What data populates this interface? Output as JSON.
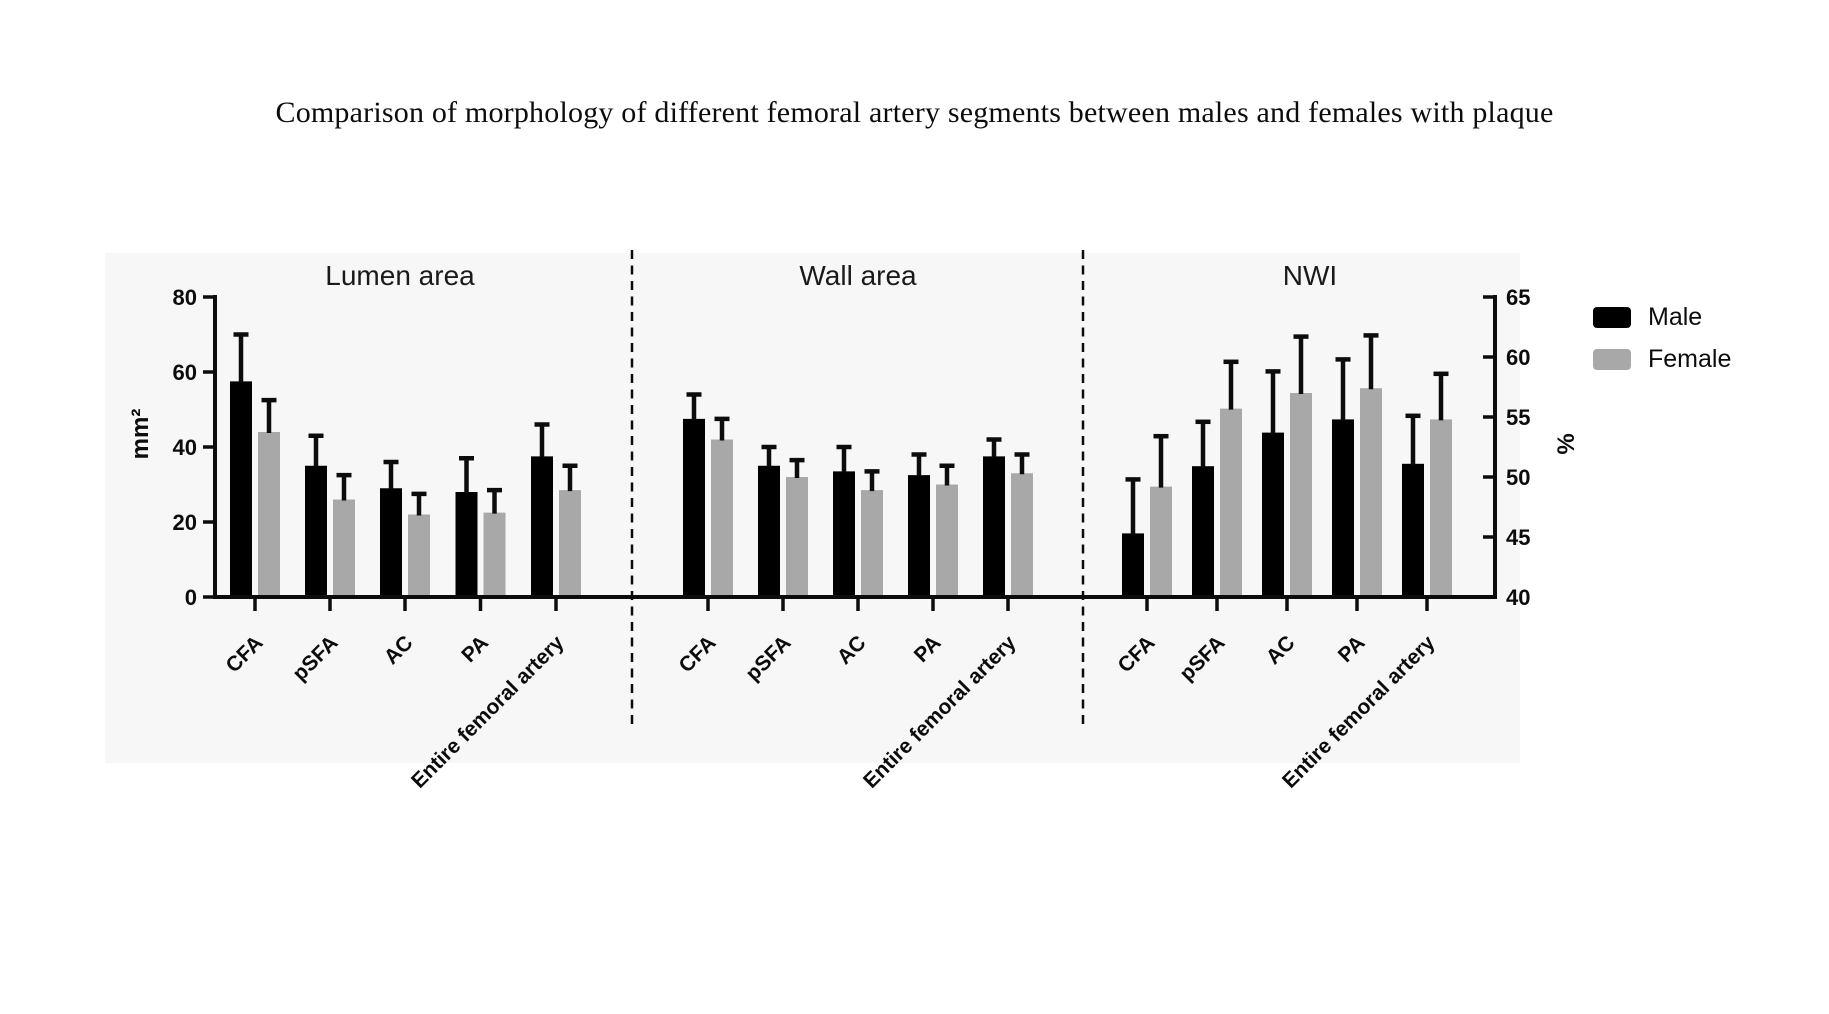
{
  "title": "Comparison of morphology of different femoral artery segments between males and females with plaque",
  "legend": {
    "position": "right",
    "male_label": "Male",
    "female_label": "Female"
  },
  "colors": {
    "male_bar": "#000000",
    "female_bar": "#a8a8a8",
    "axis": "#0c0c0c",
    "plot_background": "#f7f7f7"
  },
  "left_axis": {
    "label": "mm²",
    "ticks": [
      0,
      20,
      40,
      60,
      80
    ],
    "range": [
      0,
      80
    ]
  },
  "right_axis": {
    "label": "%",
    "ticks": [
      40,
      45,
      50,
      55,
      60,
      65
    ],
    "range": [
      40,
      65
    ]
  },
  "categories": [
    "CFA",
    "pSFA",
    "AC",
    "PA",
    "Entire femoral artery"
  ],
  "chart_data": [
    {
      "type": "bar",
      "title": "Lumen area",
      "ylabel": "mm²",
      "axis": "left",
      "ylim": [
        0,
        80
      ],
      "grid": false,
      "categories": [
        "CFA",
        "pSFA",
        "AC",
        "PA",
        "Entire femoral artery"
      ],
      "series": [
        {
          "name": "Male",
          "values": [
            57.5,
            35.0,
            29.0,
            28.0,
            37.5
          ],
          "errors": [
            12.5,
            8.0,
            7.0,
            9.0,
            8.5
          ]
        },
        {
          "name": "Female",
          "values": [
            44.0,
            26.0,
            22.0,
            22.5,
            28.5
          ],
          "errors": [
            8.5,
            6.5,
            5.5,
            6.0,
            6.5
          ]
        }
      ]
    },
    {
      "type": "bar",
      "title": "Wall area",
      "ylabel": "mm²",
      "axis": "left",
      "ylim": [
        0,
        80
      ],
      "grid": false,
      "categories": [
        "CFA",
        "pSFA",
        "AC",
        "PA",
        "Entire femoral artery"
      ],
      "series": [
        {
          "name": "Male",
          "values": [
            47.5,
            35.0,
            33.5,
            32.5,
            37.5
          ],
          "errors": [
            6.5,
            5.0,
            6.5,
            5.5,
            4.5
          ]
        },
        {
          "name": "Female",
          "values": [
            42.0,
            32.0,
            28.5,
            30.0,
            33.0
          ],
          "errors": [
            5.5,
            4.5,
            5.0,
            5.0,
            5.0
          ]
        }
      ]
    },
    {
      "type": "bar",
      "title": "NWI",
      "ylabel": "%",
      "axis": "right",
      "ylim": [
        40,
        65
      ],
      "grid": false,
      "categories": [
        "CFA",
        "pSFA",
        "AC",
        "PA",
        "Entire femoral artery"
      ],
      "series": [
        {
          "name": "Male",
          "values": [
            45.3,
            50.9,
            53.7,
            54.8,
            51.1
          ],
          "errors": [
            4.5,
            3.7,
            5.1,
            5.0,
            4.0
          ]
        },
        {
          "name": "Female",
          "values": [
            49.2,
            55.7,
            57.0,
            57.4,
            54.8
          ],
          "errors": [
            4.2,
            3.9,
            4.7,
            4.4,
            3.8
          ]
        }
      ]
    }
  ]
}
